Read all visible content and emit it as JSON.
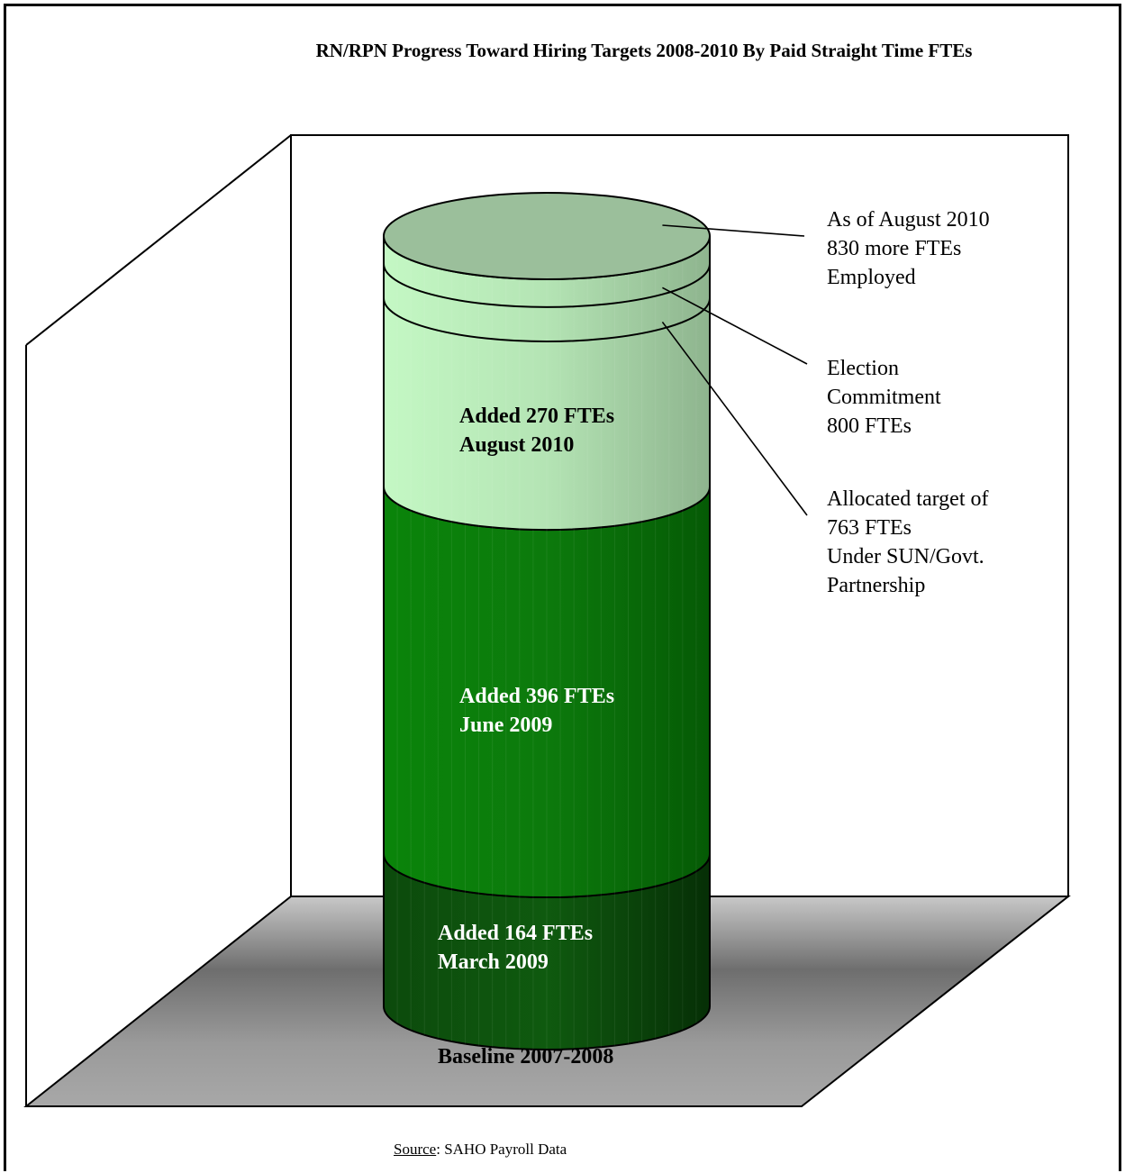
{
  "chart_data": {
    "type": "bar",
    "title": "RN/RPN Progress Toward Hiring Targets 2008-2010 By Paid Straight Time FTEs",
    "stacked": true,
    "categories": [
      "Baseline 2007-2008"
    ],
    "series": [
      {
        "name": "Added 164 FTEs March 2009",
        "values": [
          164
        ]
      },
      {
        "name": "Added 396 FTEs June 2009",
        "values": [
          396
        ]
      },
      {
        "name": "Added 270 FTEs August 2010",
        "values": [
          270
        ]
      }
    ],
    "segment_labels": [
      {
        "line1": "Added 164 FTEs",
        "line2": "March 2009"
      },
      {
        "line1": "Added 396 FTEs",
        "line2": "June 2009"
      },
      {
        "line1": "Added 270 FTEs",
        "line2": "August 2010"
      }
    ],
    "reference_levels": [
      {
        "value": 763,
        "lines": [
          "Allocated target of",
          "763 FTEs",
          "Under SUN/Govt.",
          "Partnership"
        ]
      },
      {
        "value": 800,
        "lines": [
          "Election",
          "Commitment",
          "800 FTEs"
        ]
      },
      {
        "value": 830,
        "lines": [
          "As of August 2010",
          "830 more FTEs",
          "Employed"
        ]
      }
    ],
    "baseline_label": "Baseline 2007-2008",
    "ylim": [
      0,
      830
    ],
    "colors": {
      "march_2009": "#0f4f0f",
      "june_2009": "#0a7a0a",
      "august_2010": "#b9f0b9",
      "top": "#9bbf9b",
      "floor": "#a0a0a0"
    }
  },
  "source": {
    "label": "Source",
    "text": ":  SAHO Payroll Data"
  }
}
